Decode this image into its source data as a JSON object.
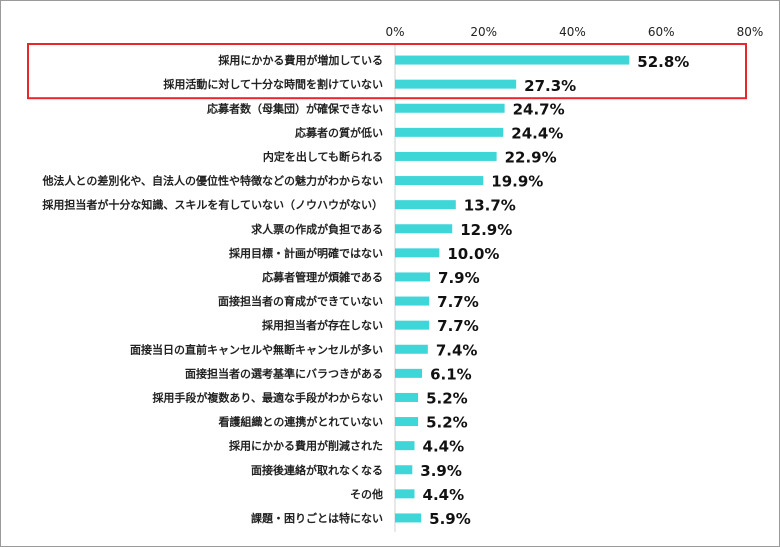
{
  "chart_data": {
    "type": "bar",
    "orientation": "horizontal",
    "categories": [
      "採用にかかる費用が増加している",
      "採用活動に対して十分な時間を割けていない",
      "応募者数（母集団）が確保できない",
      "応募者の質が低い",
      "内定を出しても断られる",
      "他法人との差別化や、自法人の優位性や特徴などの魅力がわからない",
      "採用担当者が十分な知識、スキルを有していない（ノウハウがない）",
      "求人票の作成が負担である",
      "採用目標・計画が明確ではない",
      "応募者管理が煩雑である",
      "面接担当者の育成ができていない",
      "採用担当者が存在しない",
      "面接当日の直前キャンセルや無断キャンセルが多い",
      "面接担当者の選考基準にバラつきがある",
      "採用手段が複数あり、最適な手段がわからない",
      "看護組織との連携がとれていない",
      "採用にかかる費用が削減された",
      "面接後連絡が取れなくなる",
      "その他",
      "課題・困りごとは特にない"
    ],
    "values": [
      52.8,
      27.3,
      24.7,
      24.4,
      22.9,
      19.9,
      13.7,
      12.9,
      10.0,
      7.9,
      7.7,
      7.7,
      7.4,
      6.1,
      5.2,
      5.2,
      4.4,
      3.9,
      4.4,
      5.9
    ],
    "value_labels": [
      "52.8%",
      "27.3%",
      "24.7%",
      "24.4%",
      "22.9%",
      "19.9%",
      "13.7%",
      "12.9%",
      "10.0%",
      "7.9%",
      "7.7%",
      "7.7%",
      "7.4%",
      "6.1%",
      "5.2%",
      "5.2%",
      "4.4%",
      "3.9%",
      "4.4%",
      "5.9%"
    ],
    "x_ticks": [
      "0%",
      "20%",
      "40%",
      "60%",
      "80%"
    ],
    "xlim": [
      0,
      80
    ],
    "bar_color": "#3fd6d8",
    "highlight_color": "#e8262b",
    "highlighted_categories": [
      0,
      1
    ],
    "axis_position": "top",
    "grid": false
  }
}
